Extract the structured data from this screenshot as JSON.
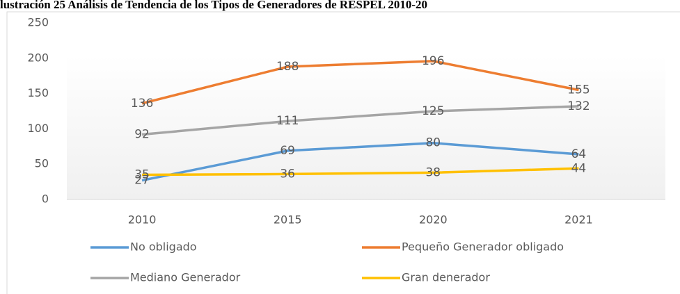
{
  "chart_data": {
    "type": "line",
    "title": "lustración 25 Análisis de Tendencia de los Tipos de Generadores de RESPEL 2010-20",
    "categories": [
      "2010",
      "2015",
      "2020",
      "2021"
    ],
    "series": [
      {
        "name": "No obligado",
        "color": "#5b9bd5",
        "values": [
          27,
          69,
          80,
          64
        ]
      },
      {
        "name": "Pequeño Generador obligado",
        "color": "#ed7d31",
        "values": [
          136,
          188,
          196,
          155
        ]
      },
      {
        "name": "Mediano Generador",
        "color": "#a5a5a5",
        "values": [
          92,
          111,
          125,
          132
        ]
      },
      {
        "name": "Gran denerador",
        "color": "#ffc000",
        "values": [
          35,
          36,
          38,
          44
        ]
      }
    ],
    "ylim": [
      0,
      250
    ],
    "yticks": [
      0,
      50,
      100,
      150,
      200,
      250
    ],
    "grid": false,
    "legend": "bottom"
  }
}
